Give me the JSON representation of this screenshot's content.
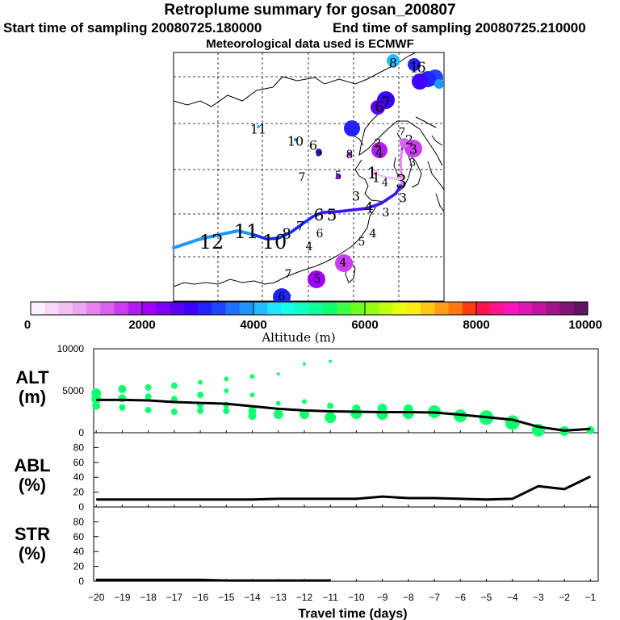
{
  "header": {
    "title": "Retroplume summary for gosan_200807",
    "start": "Start time of sampling 20080725.180000",
    "end": "End time of sampling 20080725.210000",
    "met": "Meteorological data used is ECMWF"
  },
  "colorbar": {
    "label": "Altitude (m)",
    "ticks": [
      "0",
      "2000",
      "4000",
      "6000",
      "8000",
      "10000"
    ],
    "colors": [
      "#fbeffb",
      "#f6d7f6",
      "#f0c2f0",
      "#eaa7ee",
      "#e484ec",
      "#d863ec",
      "#c93ef0",
      "#b01cf4",
      "#9d00f5",
      "#7d00f5",
      "#5a00f0",
      "#3d00ff",
      "#2222ff",
      "#1e46ff",
      "#1e70ff",
      "#1e96ff",
      "#1ebeff",
      "#1ee6ff",
      "#14ffe6",
      "#10ffc0",
      "#10ff98",
      "#10ff70",
      "#40ff48",
      "#6cff20",
      "#96ff10",
      "#beff10",
      "#e6ff10",
      "#ffeb10",
      "#ffc810",
      "#ffa014",
      "#ff7814",
      "#ff3c10",
      "#ff1450",
      "#ff1490",
      "#ff14c0",
      "#e014b0",
      "#c0149c",
      "#a01488",
      "#801474",
      "#601464"
    ]
  },
  "map_labels": [
    {
      "t": "1",
      "x": 513,
      "y": 84,
      "s": 18
    },
    {
      "t": "6",
      "x": 522,
      "y": 84,
      "s": 18
    },
    {
      "t": "8",
      "x": 487,
      "y": 78,
      "s": 16
    },
    {
      "t": "7",
      "x": 478,
      "y": 127,
      "s": 18
    },
    {
      "t": "6",
      "x": 470,
      "y": 133,
      "s": 18
    },
    {
      "t": "11",
      "x": 320,
      "y": 160,
      "s": 16
    },
    {
      "t": "10",
      "x": 366,
      "y": 175,
      "s": 16
    },
    {
      "t": "6",
      "x": 388,
      "y": 180,
      "s": 16
    },
    {
      "t": "9",
      "x": 395,
      "y": 190,
      "s": 13
    },
    {
      "t": "8",
      "x": 433,
      "y": 192,
      "s": 14
    },
    {
      "t": "2",
      "x": 468,
      "y": 178,
      "s": 14
    },
    {
      "t": "4",
      "x": 470,
      "y": 189,
      "s": 16
    },
    {
      "t": "3",
      "x": 512,
      "y": 185,
      "s": 16
    },
    {
      "t": "7",
      "x": 498,
      "y": 164,
      "s": 13
    },
    {
      "t": "2",
      "x": 507,
      "y": 173,
      "s": 16
    },
    {
      "t": "3",
      "x": 511,
      "y": 202,
      "s": 13
    },
    {
      "t": "7",
      "x": 374,
      "y": 220,
      "s": 14
    },
    {
      "t": "5",
      "x": 419,
      "y": 218,
      "s": 14
    },
    {
      "t": "1",
      "x": 461,
      "y": 214,
      "s": 20
    },
    {
      "t": "1",
      "x": 466,
      "y": 220,
      "s": 16
    },
    {
      "t": "4",
      "x": 477,
      "y": 227,
      "s": 13
    },
    {
      "t": "3",
      "x": 497,
      "y": 226,
      "s": 22
    },
    {
      "t": "3",
      "x": 441,
      "y": 243,
      "s": 16
    },
    {
      "t": "3",
      "x": 499,
      "y": 245,
      "s": 16
    },
    {
      "t": "4",
      "x": 457,
      "y": 258,
      "s": 18
    },
    {
      "t": "3",
      "x": 478,
      "y": 264,
      "s": 14
    },
    {
      "t": "6",
      "x": 395,
      "y": 266,
      "s": 20
    },
    {
      "t": "5",
      "x": 411,
      "y": 266,
      "s": 20
    },
    {
      "t": "7",
      "x": 372,
      "y": 280,
      "s": 16
    },
    {
      "t": "6",
      "x": 396,
      "y": 290,
      "s": 14
    },
    {
      "t": "4",
      "x": 383,
      "y": 306,
      "s": 14
    },
    {
      "t": "5",
      "x": 448,
      "y": 300,
      "s": 14
    },
    {
      "t": "4",
      "x": 462,
      "y": 290,
      "s": 14
    },
    {
      "t": "12",
      "x": 262,
      "y": 300,
      "s": 24
    },
    {
      "t": "11",
      "x": 305,
      "y": 287,
      "s": 24
    },
    {
      "t": "10",
      "x": 340,
      "y": 300,
      "s": 24
    },
    {
      "t": "8",
      "x": 355,
      "y": 290,
      "s": 18
    },
    {
      "t": "4",
      "x": 425,
      "y": 326,
      "s": 14
    },
    {
      "t": "5",
      "x": 393,
      "y": 346,
      "s": 14
    },
    {
      "t": "7",
      "x": 357,
      "y": 340,
      "s": 14
    },
    {
      "t": "6",
      "x": 349,
      "y": 368,
      "s": 14
    }
  ],
  "panels": {
    "alt": {
      "label_main": "ALT",
      "label_unit": "(m)",
      "yticks": [
        "10000",
        "5000",
        "0"
      ]
    },
    "abl": {
      "label_main": "ABL",
      "label_unit": "(%)",
      "yticks": [
        "0",
        "20",
        "40",
        "60",
        "80"
      ]
    },
    "str": {
      "label_main": "STR",
      "label_unit": "(%)",
      "yticks": [
        "0",
        "20",
        "40",
        "60",
        "80"
      ]
    }
  },
  "x_axis": {
    "label": "Travel time (days)",
    "ticks": [
      "−20",
      "−19",
      "−18",
      "−17",
      "−16",
      "−15",
      "−14",
      "−13",
      "−12",
      "−11",
      "−10",
      "−9",
      "−8",
      "−7",
      "−6",
      "−5",
      "−4",
      "−3",
      "−2",
      "−1"
    ]
  },
  "chart_data": {
    "type": "line",
    "x_days": [
      -20,
      -19,
      -18,
      -17,
      -16,
      -15,
      -14,
      -13,
      -12,
      -11,
      -10,
      -9,
      -8,
      -7,
      -6,
      -5,
      -4,
      -3,
      -2,
      -1
    ],
    "x_range": [
      -20.1,
      -0.7
    ],
    "series": [
      {
        "name": "ALT mean (m)",
        "ylim": [
          0,
          10000
        ],
        "values": [
          3900,
          3900,
          3850,
          3650,
          3550,
          3450,
          3150,
          2850,
          2650,
          2550,
          2500,
          2450,
          2450,
          2400,
          2150,
          1850,
          1550,
          700,
          250,
          450
        ]
      },
      {
        "name": "ABL (%)",
        "ylim": [
          0,
          100
        ],
        "values": [
          10,
          10,
          10,
          10,
          10,
          10,
          10,
          11,
          11,
          11,
          11,
          14,
          12,
          12,
          11,
          10,
          11,
          28,
          24,
          41
        ]
      },
      {
        "name": "STR (%)",
        "ylim": [
          0,
          100
        ],
        "values": [
          2,
          2,
          2,
          2,
          2,
          1,
          1,
          1,
          1,
          1,
          null,
          null,
          null,
          null,
          null,
          null,
          null,
          null,
          null,
          null
        ]
      }
    ],
    "alt_spread": [
      {
        "x": -20,
        "y": [
          4700,
          4000,
          3200
        ],
        "r": [
          6,
          6,
          5
        ]
      },
      {
        "x": -19,
        "y": [
          5200,
          4100,
          3000
        ],
        "r": [
          5,
          5,
          4
        ]
      },
      {
        "x": -18,
        "y": [
          5400,
          4300,
          2700
        ],
        "r": [
          4,
          4,
          4
        ]
      },
      {
        "x": -17,
        "y": [
          5600,
          4000,
          2500
        ],
        "r": [
          4,
          4,
          4
        ]
      },
      {
        "x": -16,
        "y": [
          6000,
          4500,
          3300,
          2600
        ],
        "r": [
          3,
          4,
          4,
          4
        ]
      },
      {
        "x": -15,
        "y": [
          6400,
          5000,
          3300,
          2600
        ],
        "r": [
          3,
          3,
          4,
          4
        ]
      },
      {
        "x": -14,
        "y": [
          6700,
          4500,
          2600,
          2000
        ],
        "r": [
          3,
          3,
          5,
          5
        ]
      },
      {
        "x": -13,
        "y": [
          7000,
          3500,
          2200
        ],
        "r": [
          2,
          3,
          6
        ]
      },
      {
        "x": -12,
        "y": [
          8200,
          3700,
          2200
        ],
        "r": [
          2,
          3,
          6
        ]
      },
      {
        "x": -11,
        "y": [
          8500,
          3200,
          1800
        ],
        "r": [
          2,
          4,
          7
        ]
      },
      {
        "x": -10,
        "y": [
          2900,
          2300
        ],
        "r": [
          5,
          7
        ]
      },
      {
        "x": -9,
        "y": [
          2900,
          2200
        ],
        "r": [
          6,
          7
        ]
      },
      {
        "x": -8,
        "y": [
          2800,
          2300
        ],
        "r": [
          6,
          7
        ]
      },
      {
        "x": -7,
        "y": [
          2500
        ],
        "r": [
          8
        ]
      },
      {
        "x": -6,
        "y": [
          2000
        ],
        "r": [
          8
        ]
      },
      {
        "x": -5,
        "y": [
          1800
        ],
        "r": [
          9
        ]
      },
      {
        "x": -4,
        "y": [
          1200
        ],
        "r": [
          9
        ]
      },
      {
        "x": -3,
        "y": [
          300
        ],
        "r": [
          8
        ]
      },
      {
        "x": -2,
        "y": [
          200
        ],
        "r": [
          6
        ]
      },
      {
        "x": -1,
        "y": [
          300
        ],
        "r": [
          5
        ]
      }
    ]
  }
}
